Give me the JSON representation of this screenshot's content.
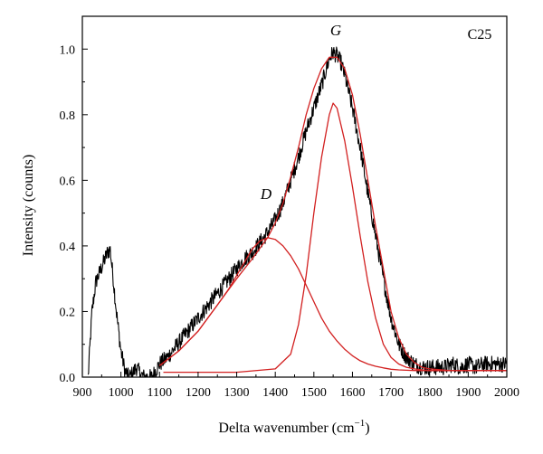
{
  "chart_data": {
    "type": "line",
    "title": "",
    "xlabel": "Delta wavenumber (cm",
    "xlabel_sup": "−1",
    "xlabel_close": ")",
    "ylabel": "Intensity (counts)",
    "xlim": [
      900,
      2000
    ],
    "ylim": [
      0,
      1.1
    ],
    "x_ticks": [
      900,
      1000,
      1100,
      1200,
      1300,
      1400,
      1500,
      1600,
      1700,
      1800,
      1900,
      2000
    ],
    "y_ticks": [
      0.0,
      0.2,
      0.4,
      0.6,
      0.8,
      1.0
    ],
    "y_tick_labels": [
      "0.0",
      "0.2",
      "0.4",
      "0.6",
      "0.8",
      "1.0"
    ],
    "grid": false,
    "annotations": [
      {
        "text": "C25",
        "position": "top-right"
      },
      {
        "text": "G",
        "x": 1548,
        "y": 1.045
      },
      {
        "text": "D",
        "x": 1370,
        "y": 0.545
      }
    ],
    "series": [
      {
        "color": "#000000",
        "noisy": true,
        "x": [
          915,
          925,
          935,
          945,
          955,
          965,
          972,
          980,
          990,
          1000,
          1010,
          1020,
          1030,
          1040,
          1050,
          1060,
          1070,
          1080,
          1090,
          1100,
          1120,
          1140,
          1160,
          1180,
          1200,
          1220,
          1240,
          1260,
          1280,
          1300,
          1320,
          1340,
          1360,
          1380,
          1400,
          1420,
          1440,
          1460,
          1480,
          1500,
          1520,
          1530,
          1540,
          1550,
          1560,
          1570,
          1580,
          1600,
          1620,
          1640,
          1660,
          1680,
          1700,
          1720,
          1740,
          1760,
          1780,
          1800,
          1820,
          1840,
          1860,
          1880,
          1900,
          1920,
          1940,
          1960,
          1980,
          2000
        ],
        "y": [
          0.0,
          0.2,
          0.29,
          0.32,
          0.35,
          0.38,
          0.39,
          0.3,
          0.18,
          0.08,
          0.02,
          0.0,
          0.01,
          0.03,
          0.01,
          0.0,
          0.0,
          0.0,
          0.02,
          0.04,
          0.06,
          0.09,
          0.12,
          0.15,
          0.18,
          0.21,
          0.24,
          0.27,
          0.3,
          0.33,
          0.36,
          0.38,
          0.41,
          0.44,
          0.48,
          0.53,
          0.6,
          0.67,
          0.75,
          0.82,
          0.89,
          0.93,
          0.97,
          0.99,
          0.98,
          0.96,
          0.92,
          0.82,
          0.7,
          0.56,
          0.43,
          0.3,
          0.18,
          0.1,
          0.06,
          0.04,
          0.03,
          0.03,
          0.03,
          0.03,
          0.04,
          0.03,
          0.04,
          0.03,
          0.04,
          0.04,
          0.04,
          0.04
        ]
      },
      {
        "color": "#d22020",
        "x": [
          1100,
          1150,
          1200,
          1250,
          1300,
          1340,
          1380,
          1400,
          1420,
          1440,
          1460,
          1480,
          1500,
          1520,
          1540,
          1560,
          1580,
          1600,
          1620,
          1640,
          1660,
          1680,
          1700,
          1720,
          1740,
          1760,
          1780,
          1800,
          1850,
          1900,
          1950,
          2000
        ],
        "y": [
          0.035,
          0.08,
          0.14,
          0.22,
          0.3,
          0.36,
          0.425,
          0.47,
          0.53,
          0.61,
          0.7,
          0.8,
          0.88,
          0.94,
          0.975,
          0.975,
          0.94,
          0.86,
          0.74,
          0.6,
          0.46,
          0.33,
          0.2,
          0.12,
          0.07,
          0.045,
          0.03,
          0.025,
          0.02,
          0.02,
          0.02,
          0.02
        ]
      },
      {
        "color": "#d22020",
        "x": [
          1100,
          1150,
          1200,
          1250,
          1280,
          1300,
          1320,
          1340,
          1360,
          1380,
          1400,
          1420,
          1440,
          1460,
          1480,
          1500,
          1520,
          1540,
          1560,
          1580,
          1600,
          1620,
          1640,
          1660,
          1680,
          1700,
          1720,
          1740,
          1760,
          1800,
          1850,
          1900,
          1950,
          2000
        ],
        "y": [
          0.035,
          0.08,
          0.14,
          0.22,
          0.27,
          0.31,
          0.35,
          0.39,
          0.415,
          0.425,
          0.42,
          0.4,
          0.37,
          0.33,
          0.28,
          0.23,
          0.18,
          0.14,
          0.11,
          0.085,
          0.065,
          0.05,
          0.04,
          0.033,
          0.028,
          0.024,
          0.022,
          0.021,
          0.02,
          0.02,
          0.02,
          0.02,
          0.02,
          0.02
        ]
      },
      {
        "color": "#d22020",
        "x": [
          1110,
          1200,
          1300,
          1400,
          1440,
          1460,
          1480,
          1500,
          1520,
          1540,
          1550,
          1560,
          1580,
          1600,
          1620,
          1640,
          1660,
          1680,
          1700,
          1720,
          1740,
          1760,
          1780,
          1800,
          1850,
          1900,
          1950,
          2000
        ],
        "y": [
          0.015,
          0.015,
          0.015,
          0.025,
          0.07,
          0.16,
          0.31,
          0.5,
          0.67,
          0.8,
          0.835,
          0.82,
          0.72,
          0.58,
          0.43,
          0.29,
          0.18,
          0.1,
          0.06,
          0.04,
          0.03,
          0.025,
          0.022,
          0.02,
          0.02,
          0.02,
          0.02,
          0.02
        ]
      }
    ]
  }
}
